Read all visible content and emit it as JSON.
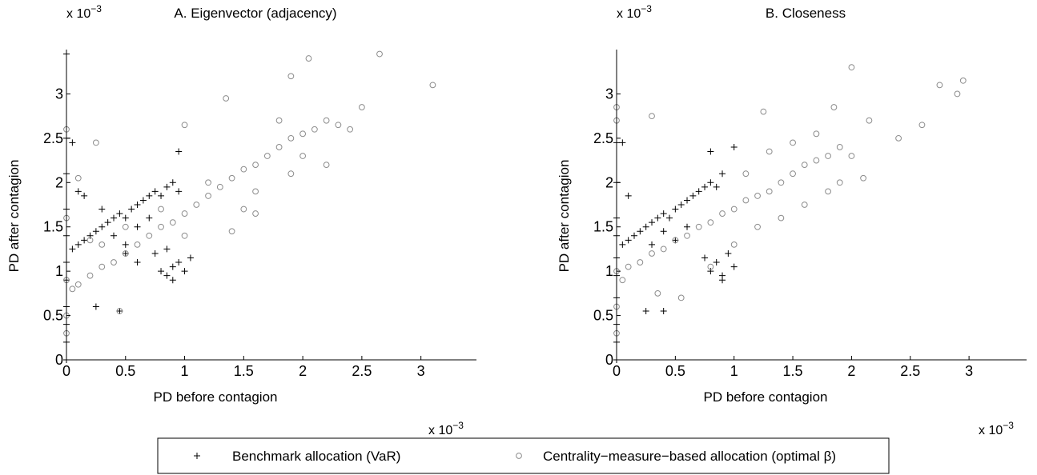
{
  "chart_data": [
    {
      "type": "scatter",
      "title": "A. Eigenvector (adjacency)",
      "x_label": "PD before contagion",
      "y_label": "PD after contagion",
      "multiplier": "x 10",
      "multiplier_exponent": "−3",
      "xlim": [
        0,
        3.47
      ],
      "ylim": [
        0,
        3.5
      ],
      "xticks": [
        0,
        0.5,
        1,
        1.5,
        2,
        2.5,
        3
      ],
      "yticks": [
        0,
        0.5,
        1,
        1.5,
        2,
        2.5,
        3
      ],
      "series": [
        {
          "name": "Benchmark allocation (VaR)",
          "marker": "plus",
          "color": "#000000",
          "x": [
            0,
            0,
            0,
            0,
            0,
            0,
            0,
            0,
            0,
            0,
            0,
            0.05,
            0.1,
            0.15,
            0.2,
            0.25,
            0.3,
            0.35,
            0.4,
            0.45,
            0.5,
            0.55,
            0.6,
            0.65,
            0.7,
            0.75,
            0.8,
            0.85,
            0.9,
            0.95,
            0.3,
            0.4,
            0.5,
            0.6,
            0.7,
            0.8,
            0.85,
            0.9,
            0.95,
            1.0,
            1.05,
            0.75,
            0.6,
            0.5,
            0.85,
            0.9,
            0.05,
            0.25,
            0.45,
            0.95,
            0.15,
            0.1
          ],
          "values": [
            0,
            0.2,
            0.4,
            0.6,
            0.9,
            1.1,
            1.4,
            1.7,
            2.1,
            2.5,
            3.45,
            1.25,
            1.3,
            1.35,
            1.4,
            1.45,
            1.5,
            1.55,
            1.6,
            1.65,
            1.6,
            1.7,
            1.75,
            1.8,
            1.85,
            1.9,
            1.85,
            1.95,
            2.0,
            1.9,
            1.7,
            1.4,
            1.3,
            1.5,
            1.6,
            1.0,
            0.95,
            1.05,
            1.1,
            1.0,
            1.15,
            1.2,
            1.1,
            1.2,
            1.25,
            0.9,
            2.45,
            0.6,
            0.55,
            2.35,
            1.85,
            1.9
          ]
        },
        {
          "name": "Centrality−measure−based allocation (optimal β)",
          "marker": "circle",
          "color": "#8c8c8c",
          "x": [
            0,
            0,
            0,
            0,
            0,
            0.05,
            0.1,
            0.2,
            0.3,
            0.4,
            0.5,
            0.6,
            0.7,
            0.8,
            0.9,
            1.0,
            1.1,
            1.2,
            1.3,
            1.4,
            1.5,
            1.6,
            1.7,
            1.8,
            1.9,
            2.0,
            2.1,
            2.2,
            2.3,
            2.4,
            2.5,
            1.8,
            2.0,
            2.2,
            1.9,
            1.6,
            1.5,
            1.2,
            1.0,
            0.8,
            0.5,
            0.3,
            0.2,
            0.45,
            0.25,
            1.4,
            1.0,
            1.35,
            1.9,
            2.05,
            2.65,
            3.1,
            1.6,
            0.1
          ],
          "values": [
            0.3,
            0.5,
            0.9,
            1.6,
            2.6,
            0.8,
            0.85,
            0.95,
            1.05,
            1.1,
            1.2,
            1.3,
            1.4,
            1.5,
            1.55,
            1.65,
            1.75,
            1.85,
            1.95,
            2.05,
            2.15,
            2.2,
            2.3,
            2.4,
            2.5,
            2.55,
            2.6,
            2.7,
            2.65,
            2.6,
            2.85,
            2.7,
            2.3,
            2.2,
            2.1,
            1.9,
            1.7,
            2.0,
            1.4,
            1.7,
            1.5,
            1.3,
            1.35,
            0.55,
            2.45,
            1.45,
            2.65,
            2.95,
            3.2,
            3.4,
            3.45,
            3.1,
            1.65,
            2.05
          ]
        }
      ]
    },
    {
      "type": "scatter",
      "title": "B. Closeness",
      "x_label": "PD before contagion",
      "y_label": "PD after contagion",
      "multiplier": "x 10",
      "multiplier_exponent": "−3",
      "xlim": [
        0,
        3.49
      ],
      "ylim": [
        0,
        3.5
      ],
      "xticks": [
        0,
        0.5,
        1,
        1.5,
        2,
        2.5,
        3
      ],
      "yticks": [
        0,
        0.5,
        1,
        1.5,
        2,
        2.5,
        3
      ],
      "series": [
        {
          "marker": "plus",
          "color": "#000000",
          "x": [
            0,
            0,
            0,
            0,
            0,
            0,
            0,
            0,
            0,
            0,
            0.05,
            0.1,
            0.15,
            0.2,
            0.25,
            0.3,
            0.35,
            0.4,
            0.45,
            0.5,
            0.55,
            0.6,
            0.65,
            0.7,
            0.75,
            0.8,
            0.85,
            0.9,
            0.3,
            0.4,
            0.5,
            0.6,
            0.8,
            0.85,
            0.9,
            0.95,
            1.0,
            0.75,
            0.9,
            0.05,
            0.4,
            0.25,
            1.0,
            0.8,
            0.1
          ],
          "values": [
            0,
            0.2,
            0.4,
            0.7,
            0.95,
            1.15,
            1.4,
            1.6,
            2.0,
            2.45,
            1.3,
            1.35,
            1.4,
            1.45,
            1.5,
            1.55,
            1.6,
            1.65,
            1.6,
            1.7,
            1.75,
            1.8,
            1.85,
            1.9,
            1.95,
            2.0,
            1.95,
            2.1,
            1.3,
            1.45,
            1.35,
            1.5,
            1.0,
            1.1,
            0.95,
            1.2,
            1.05,
            1.15,
            0.9,
            2.45,
            0.55,
            0.55,
            2.4,
            2.35,
            1.85
          ]
        },
        {
          "marker": "circle",
          "color": "#8c8c8c",
          "x": [
            0,
            0,
            0,
            0,
            0,
            0.1,
            0.2,
            0.3,
            0.4,
            0.5,
            0.6,
            0.7,
            0.8,
            0.9,
            1.0,
            1.1,
            1.2,
            1.3,
            1.4,
            1.5,
            1.6,
            1.7,
            1.8,
            1.9,
            2.0,
            1.2,
            1.4,
            1.6,
            1.8,
            1.1,
            1.3,
            1.5,
            1.7,
            1.9,
            2.1,
            1.0,
            0.8,
            0.3,
            1.25,
            2.0,
            2.75,
            2.95,
            2.9,
            2.6,
            2.4,
            2.15,
            0.55,
            0.35,
            1.85,
            0.05
          ],
          "values": [
            0.3,
            0.6,
            1.0,
            2.85,
            2.7,
            1.05,
            1.1,
            1.2,
            1.25,
            1.35,
            1.4,
            1.5,
            1.55,
            1.65,
            1.7,
            1.8,
            1.85,
            1.9,
            2.0,
            2.1,
            2.2,
            2.25,
            2.3,
            2.4,
            2.3,
            1.5,
            1.6,
            1.75,
            1.9,
            2.1,
            2.35,
            2.45,
            2.55,
            2.0,
            2.05,
            1.3,
            1.05,
            2.75,
            2.8,
            3.3,
            3.1,
            3.15,
            3.0,
            2.65,
            2.5,
            2.7,
            0.7,
            0.75,
            2.85,
            0.9
          ]
        }
      ]
    }
  ]
}
